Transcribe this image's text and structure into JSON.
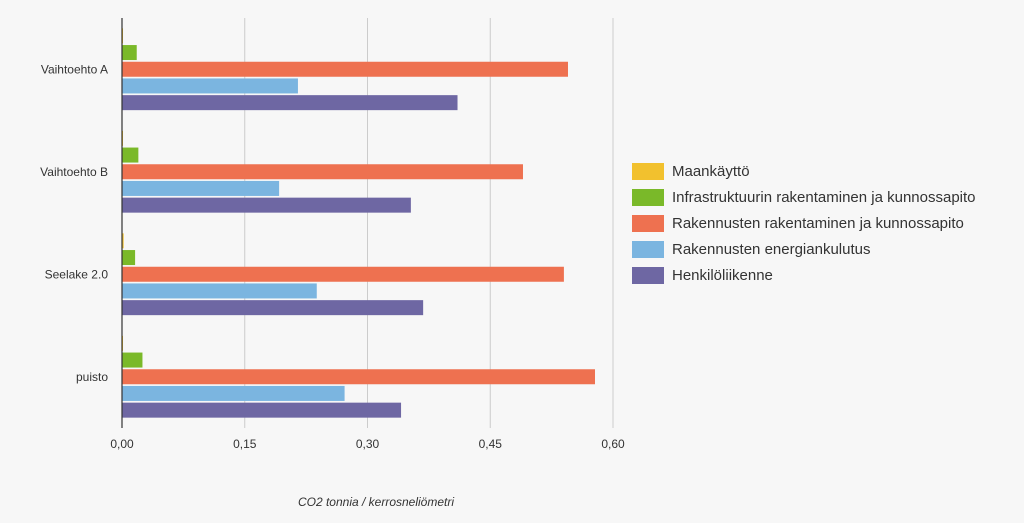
{
  "chart_data": {
    "type": "bar",
    "orientation": "horizontal",
    "categories": [
      "Vaihtoehto A",
      "Vaihtoehto B",
      "Seelake 2.0",
      "puisto"
    ],
    "series": [
      {
        "name": "Maankäyttö",
        "color": "#f2c12e",
        "values": [
          0.001,
          0.001,
          0.002,
          0.001
        ]
      },
      {
        "name": "Infrastruktuurin rakentaminen ja kunnossapito",
        "color": "#7ab929",
        "values": [
          0.018,
          0.02,
          0.016,
          0.025
        ]
      },
      {
        "name": "Rakennusten rakentaminen ja kunnossapito",
        "color": "#ee7150",
        "values": [
          0.545,
          0.49,
          0.54,
          0.578
        ]
      },
      {
        "name": "Rakennusten energiankulutus",
        "color": "#7bb5e0",
        "values": [
          0.215,
          0.192,
          0.238,
          0.272
        ]
      },
      {
        "name": "Henkilöliikenne",
        "color": "#6e67a3",
        "values": [
          0.41,
          0.353,
          0.368,
          0.341
        ]
      }
    ],
    "xlabel": "CO2 tonnia / kerrosneliömetri",
    "ylabel": "",
    "xlim": [
      0,
      0.6
    ],
    "ticks": [
      {
        "value": 0,
        "label": "0,00"
      },
      {
        "value": 0.15,
        "label": "0,15"
      },
      {
        "value": 0.3,
        "label": "0,30"
      },
      {
        "value": 0.45,
        "label": "0,45"
      },
      {
        "value": 0.6,
        "label": "0,60"
      }
    ],
    "grid": true,
    "legend_position": "right"
  }
}
